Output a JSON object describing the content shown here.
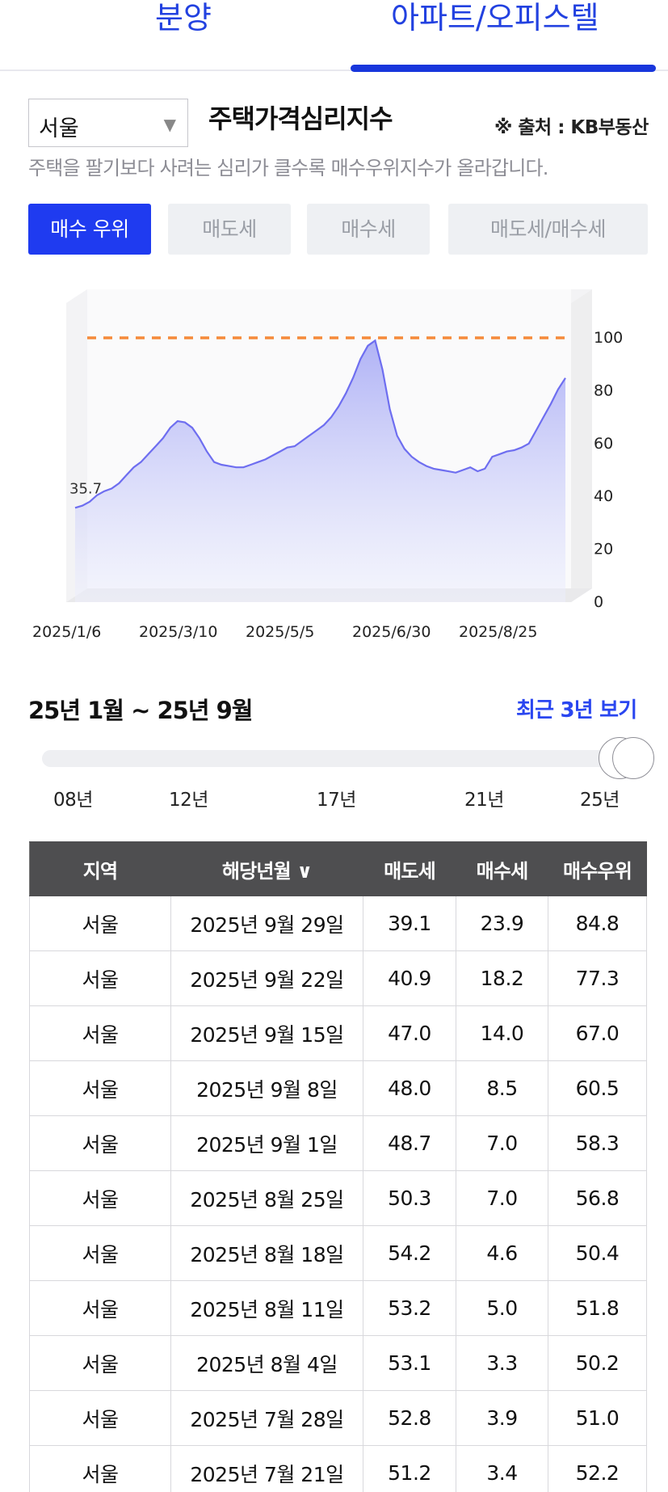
{
  "tabs": [
    {
      "label": "분양"
    },
    {
      "label": "아파트/오피스텔"
    }
  ],
  "region": {
    "selected": "서울"
  },
  "chart_title": "주택가격심리지수",
  "source": "※ 출처 : KB부동산",
  "description": "주택을 팔기보다 사려는 심리가 클수록 매수우위지수가 올라갑니다.",
  "buttons": [
    {
      "label": "매수 우위",
      "active": true
    },
    {
      "label": "매도세",
      "active": false
    },
    {
      "label": "매수세",
      "active": false
    },
    {
      "label": "매도세/매수세",
      "active": false
    }
  ],
  "colors": {
    "accent": "#1f3bf0",
    "line": "#6e6ef0",
    "reference_line": "#f58a3a",
    "table_header": "#4e4e50"
  },
  "chart_data": {
    "type": "area",
    "series": [
      {
        "values": [
          35.7,
          36.5,
          38,
          40.5,
          42,
          43,
          45,
          48,
          51,
          53,
          56,
          59,
          62,
          66,
          68.5,
          68,
          66,
          62,
          57,
          53,
          52,
          51.5,
          51,
          51,
          52,
          53,
          54,
          55.5,
          57,
          58.5,
          59,
          61,
          63,
          65,
          67,
          70,
          74,
          79,
          85,
          92,
          97,
          99,
          88,
          73,
          63,
          58,
          55,
          53,
          51.5,
          50.5,
          50,
          49.5,
          49,
          50,
          51,
          49.5,
          50.5,
          55,
          56,
          57,
          57.5,
          58.5,
          60,
          65,
          70,
          75,
          80.5,
          84.8
        ]
      }
    ],
    "first_value_label": "35.7",
    "x_tick_labels": [
      "2025/1/6",
      "2025/3/10",
      "2025/5/5",
      "2025/6/30",
      "2025/8/25"
    ],
    "y_tick_labels": [
      "100",
      "80",
      "60",
      "40",
      "20",
      "0"
    ],
    "ylim": [
      0,
      100
    ],
    "reference_line": 100,
    "grid": false
  },
  "period": {
    "label": "25년 1월 ~ 25년 9월",
    "recent_link": "최근 3년 보기"
  },
  "slider": {
    "ticks": [
      "08년",
      "12년",
      "17년",
      "21년",
      "25년"
    ],
    "start_position": 1.0,
    "end_position": 1.0
  },
  "table": {
    "headers": [
      "지역",
      "해당년월 ∨",
      "매도세",
      "매수세",
      "매수우위"
    ],
    "rows": [
      [
        "서울",
        "2025년 9월 29일",
        "39.1",
        "23.9",
        "84.8"
      ],
      [
        "서울",
        "2025년 9월 22일",
        "40.9",
        "18.2",
        "77.3"
      ],
      [
        "서울",
        "2025년 9월 15일",
        "47.0",
        "14.0",
        "67.0"
      ],
      [
        "서울",
        "2025년 9월 8일",
        "48.0",
        "8.5",
        "60.5"
      ],
      [
        "서울",
        "2025년 9월 1일",
        "48.7",
        "7.0",
        "58.3"
      ],
      [
        "서울",
        "2025년 8월 25일",
        "50.3",
        "7.0",
        "56.8"
      ],
      [
        "서울",
        "2025년 8월 18일",
        "54.2",
        "4.6",
        "50.4"
      ],
      [
        "서울",
        "2025년 8월 11일",
        "53.2",
        "5.0",
        "51.8"
      ],
      [
        "서울",
        "2025년 8월 4일",
        "53.1",
        "3.3",
        "50.2"
      ],
      [
        "서울",
        "2025년 7월 28일",
        "52.8",
        "3.9",
        "51.0"
      ],
      [
        "서울",
        "2025년 7월 21일",
        "51.2",
        "3.4",
        "52.2"
      ]
    ]
  }
}
